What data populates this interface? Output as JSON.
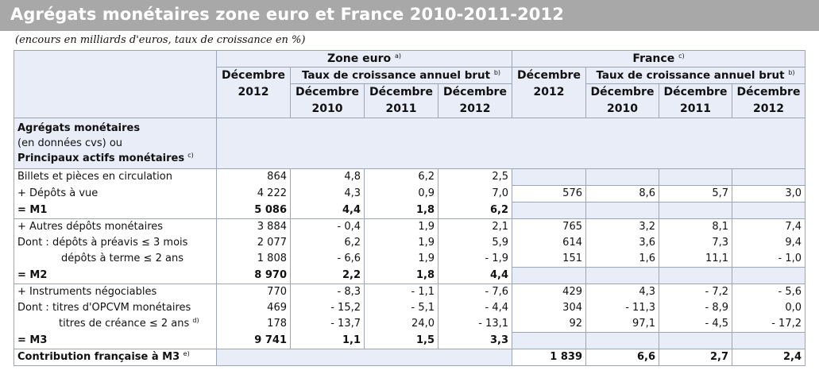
{
  "title": "Agrégats monétaires zone euro et France 2010-2011-2012",
  "subtitle": "(encours en milliards d'euros, taux de croissance en %)",
  "header": {
    "zone_euro": "Zone euro",
    "zone_euro_note": "a)",
    "france": "France",
    "france_note": "c)",
    "decembre_2012": [
      "Décembre",
      "2012"
    ],
    "taux": "Taux de croissance annuel brut",
    "taux_note": "b)",
    "decembre": "Décembre",
    "years": [
      "2010",
      "2011",
      "2012"
    ]
  },
  "section_label": {
    "line1": "Agrégats monétaires",
    "line2": "(en données cvs) ou",
    "line3": "Principaux actifs monétaires",
    "line3_note": "c)"
  },
  "groups": [
    {
      "rows": [
        {
          "label": "Billets et pièces en circulation",
          "bold": false,
          "ze": [
            "864",
            "4,8",
            "6,2",
            "2,5"
          ],
          "fr": [
            "",
            "",
            "",
            ""
          ]
        },
        {
          "label": "+ Dépôts à vue",
          "bold": false,
          "ze": [
            "4 222",
            "4,3",
            "0,9",
            "7,0"
          ],
          "fr": [
            "576",
            "8,6",
            "5,7",
            "3,0"
          ]
        },
        {
          "label": "= M1",
          "bold": true,
          "ze": [
            "5 086",
            "4,4",
            "1,8",
            "6,2"
          ],
          "fr": [
            "",
            "",
            "",
            ""
          ]
        }
      ]
    },
    {
      "rows": [
        {
          "label": "+ Autres dépôts monétaires",
          "bold": false,
          "ze": [
            "3 884",
            "- 0,4",
            "1,9",
            "2,1"
          ],
          "fr": [
            "765",
            "3,2",
            "8,1",
            "7,4"
          ]
        },
        {
          "label": "Dont : dépôts à préavis ≤ 3 mois",
          "bold": false,
          "ze": [
            "2 077",
            "6,2",
            "1,9",
            "5,9"
          ],
          "fr": [
            "614",
            "3,6",
            "7,3",
            "9,4"
          ]
        },
        {
          "label": "dépôts à terme ≤ 2 ans",
          "bold": false,
          "indent": true,
          "ze": [
            "1 808",
            "- 6,6",
            "1,9",
            "- 1,9"
          ],
          "fr": [
            "151",
            "1,6",
            "11,1",
            "- 1,0"
          ]
        },
        {
          "label": "= M2",
          "bold": true,
          "ze": [
            "8 970",
            "2,2",
            "1,8",
            "4,4"
          ],
          "fr": [
            "",
            "",
            "",
            ""
          ]
        }
      ]
    },
    {
      "rows": [
        {
          "label": "+ Instruments négociables",
          "bold": false,
          "ze": [
            "770",
            "- 8,3",
            "- 1,1",
            "- 7,6"
          ],
          "fr": [
            "429",
            "4,3",
            "- 7,2",
            "- 5,6"
          ]
        },
        {
          "label": "Dont : titres d'OPCVM monétaires",
          "bold": false,
          "ze": [
            "469",
            "- 15,2",
            "- 5,1",
            "- 4,4"
          ],
          "fr": [
            "304",
            "- 11,3",
            "- 8,9",
            "0,0"
          ]
        },
        {
          "label": "titres de créance ≤ 2 ans",
          "note": "d)",
          "bold": false,
          "indentT": true,
          "ze": [
            "178",
            "- 13,7",
            "24,0",
            "- 13,1"
          ],
          "fr": [
            "92",
            "97,1",
            "- 4,5",
            "- 17,2"
          ]
        },
        {
          "label": "= M3",
          "bold": true,
          "ze": [
            "9 741",
            "1,1",
            "1,5",
            "3,3"
          ],
          "fr": [
            "",
            "",
            "",
            ""
          ]
        }
      ]
    }
  ],
  "contribution": {
    "label": "Contribution française à M3",
    "note": "e)",
    "fr": [
      "1 839",
      "6,6",
      "2,7",
      "2,4"
    ]
  }
}
